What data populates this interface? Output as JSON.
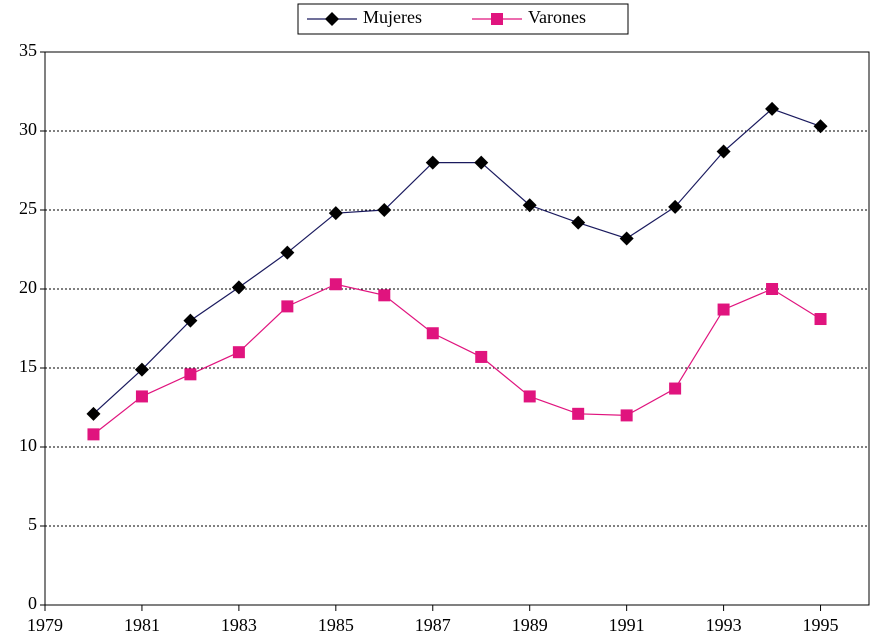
{
  "chart_data": {
    "type": "line",
    "x": [
      1980,
      1981,
      1982,
      1983,
      1984,
      1985,
      1986,
      1987,
      1988,
      1989,
      1990,
      1991,
      1992,
      1993,
      1994,
      1995
    ],
    "series": [
      {
        "name": "Mujeres",
        "color": "#1a1a5e",
        "marker_color": "#000000",
        "marker": "diamond",
        "values": [
          12.1,
          14.9,
          18.0,
          20.1,
          22.3,
          24.8,
          25.0,
          28.0,
          28.0,
          25.3,
          24.2,
          23.2,
          25.2,
          28.7,
          31.4,
          30.3
        ]
      },
      {
        "name": "Varones",
        "color": "#e0147e",
        "marker_color": "#e0147e",
        "marker": "square",
        "values": [
          10.8,
          13.2,
          14.6,
          16.0,
          18.9,
          20.3,
          19.6,
          17.2,
          15.7,
          13.2,
          12.1,
          12.0,
          13.7,
          18.7,
          20.0,
          18.1
        ]
      }
    ],
    "xlim": [
      1979,
      1996
    ],
    "xticks": [
      1979,
      1981,
      1983,
      1985,
      1987,
      1989,
      1991,
      1993,
      1995
    ],
    "ylim": [
      0,
      35
    ],
    "yticks": [
      0,
      5,
      10,
      15,
      20,
      25,
      30,
      35
    ],
    "grid": true,
    "legend": "top"
  }
}
